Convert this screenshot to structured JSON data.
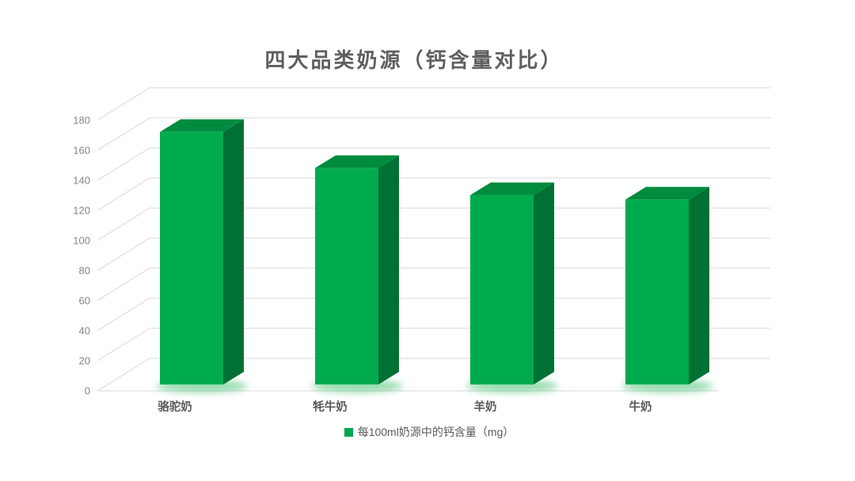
{
  "chart_data": {
    "type": "bar",
    "variant": "3d-clustered-column",
    "title": "四大品类奶源（钙含量对比）",
    "categories": [
      "骆驼奶",
      "牦牛奶",
      "羊奶",
      "牛奶"
    ],
    "series": [
      {
        "name": "每100ml奶源中的钙含量（mg）",
        "values": [
          168,
          144,
          126,
          123
        ],
        "color": "#00AB4E"
      }
    ],
    "xlabel": "",
    "ylabel": "",
    "ylim": [
      0,
      180
    ],
    "ytick_step": 20,
    "yticks": [
      0,
      20,
      40,
      60,
      80,
      100,
      120,
      140,
      160,
      180
    ],
    "grid": true,
    "legend_position": "bottom"
  },
  "legend": {
    "items": [
      {
        "label": "每100ml奶源中的钙含量（mg）",
        "color": "#00A44C"
      }
    ]
  },
  "colors": {
    "background": "#FFFFFF",
    "bar_front": "#00AB4E",
    "bar_top": "#008C3F",
    "bar_side": "#007133",
    "bar_glow": "#3DBE6C",
    "gridline": "#D9D9D9",
    "title_text": "#5F5F5F",
    "axis_text": "#858585",
    "category_text": "#595959",
    "legend_text": "#595959"
  }
}
